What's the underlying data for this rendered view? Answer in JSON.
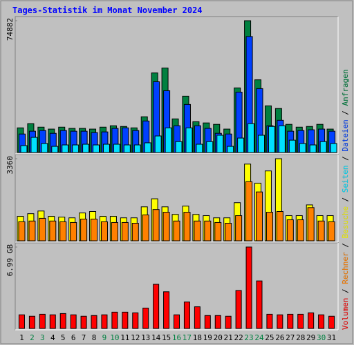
{
  "legend_separator": " / ",
  "chart_data": [
    {
      "type": "bar",
      "title": "Tages-Statistik im Monat November 2024",
      "ylim": [
        0,
        74882
      ],
      "yticks": [
        74882
      ],
      "series": [
        {
          "name": "Anfragen",
          "color": "#008040",
          "values": [
            14000,
            16400,
            14400,
            13300,
            14400,
            13700,
            13700,
            13300,
            14400,
            15200,
            14800,
            14000,
            20300,
            45200,
            48000,
            19100,
            32000,
            17500,
            16800,
            16000,
            13300,
            36700,
            74882,
            41300,
            26500,
            25000,
            16000,
            14400,
            14800,
            16000,
            13300
          ]
        },
        {
          "name": "Dateien",
          "color": "#0040ff",
          "values": [
            10500,
            12100,
            12500,
            10900,
            12500,
            12100,
            12100,
            11300,
            11700,
            13700,
            14000,
            12500,
            17900,
            40200,
            35100,
            15200,
            27300,
            15200,
            13700,
            10900,
            10500,
            34300,
            65900,
            36300,
            15200,
            18300,
            12100,
            12500,
            12900,
            13300,
            12100
          ]
        },
        {
          "name": "Seiten",
          "color": "#00e0ff",
          "values": [
            3900,
            8600,
            5100,
            3500,
            4300,
            4300,
            4700,
            4300,
            4700,
            4700,
            4300,
            4300,
            5500,
            9400,
            14000,
            6200,
            14000,
            4700,
            6200,
            9800,
            3500,
            8200,
            16400,
            9800,
            14800,
            15200,
            7000,
            5100,
            4300,
            6200,
            5100
          ]
        }
      ]
    },
    {
      "type": "bar",
      "ylim": [
        0,
        3360
      ],
      "yticks": [
        3360
      ],
      "series": [
        {
          "name": "Besuche",
          "color": "#ffff00",
          "values": [
            1000,
            1110,
            1220,
            1000,
            970,
            940,
            1140,
            1200,
            1000,
            1000,
            940,
            940,
            1390,
            1720,
            1390,
            1080,
            1420,
            1080,
            1030,
            940,
            940,
            1560,
            3140,
            2360,
            2860,
            3360,
            1030,
            1030,
            1470,
            1030,
            1030
          ]
        },
        {
          "name": "Rechner",
          "color": "#ff8000",
          "values": [
            780,
            810,
            920,
            810,
            780,
            750,
            890,
            890,
            780,
            750,
            750,
            720,
            1060,
            1280,
            1170,
            810,
            1170,
            810,
            810,
            750,
            720,
            1030,
            2420,
            2000,
            1170,
            1200,
            860,
            860,
            1360,
            810,
            780
          ]
        }
      ]
    },
    {
      "type": "bar",
      "ylim": [
        0,
        6.99
      ],
      "yticks": [
        {
          "value": 6.99,
          "label": "6.99 GB"
        }
      ],
      "categories": [
        "1",
        "2",
        "3",
        "4",
        "5",
        "6",
        "7",
        "8",
        "9",
        "10",
        "11",
        "12",
        "13",
        "14",
        "15",
        "16",
        "17",
        "18",
        "19",
        "20",
        "21",
        "22",
        "23",
        "24",
        "25",
        "26",
        "27",
        "28",
        "29",
        "30",
        "31"
      ],
      "category_colors": [
        "#000000",
        "#008040",
        "#008040",
        "#000000",
        "#000000",
        "#000000",
        "#000000",
        "#000000",
        "#008040",
        "#008040",
        "#000000",
        "#000000",
        "#000000",
        "#000000",
        "#000000",
        "#008040",
        "#008040",
        "#000000",
        "#000000",
        "#000000",
        "#000000",
        "#000000",
        "#008040",
        "#008040",
        "#000000",
        "#000000",
        "#000000",
        "#000000",
        "#000000",
        "#008040",
        "#000000"
      ],
      "series": [
        {
          "name": "Volumen",
          "color": "#ff0000",
          "values": [
            1.17,
            1.05,
            1.22,
            1.17,
            1.28,
            1.17,
            1.05,
            1.11,
            1.17,
            1.4,
            1.4,
            1.34,
            1.75,
            3.79,
            3.15,
            1.17,
            2.27,
            1.86,
            1.11,
            1.11,
            1.05,
            3.26,
            6.99,
            4.08,
            1.22,
            1.17,
            1.22,
            1.22,
            1.34,
            1.17,
            1.05
          ]
        }
      ]
    }
  ]
}
